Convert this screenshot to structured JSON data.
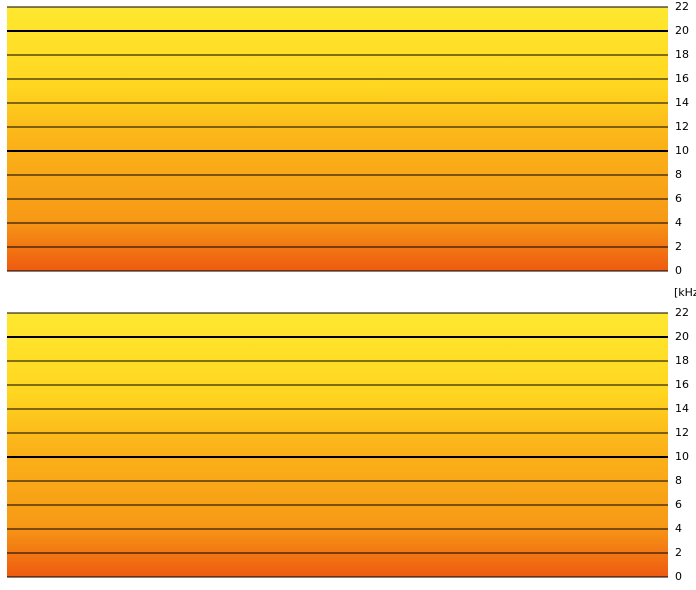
{
  "chart_data": [
    {
      "type": "spectrogram",
      "ylim": [
        0,
        22
      ],
      "yticks": [
        0,
        2,
        4,
        6,
        8,
        10,
        12,
        14,
        16,
        18,
        20,
        22
      ],
      "major_ticks": [
        10,
        20
      ],
      "grid": true
    },
    {
      "type": "spectrogram",
      "y_label": "[kHz",
      "ylim": [
        0,
        22
      ],
      "yticks": [
        0,
        2,
        4,
        6,
        8,
        10,
        12,
        14,
        16,
        18,
        20,
        22
      ],
      "major_ticks": [
        10,
        20
      ],
      "grid": true
    }
  ]
}
